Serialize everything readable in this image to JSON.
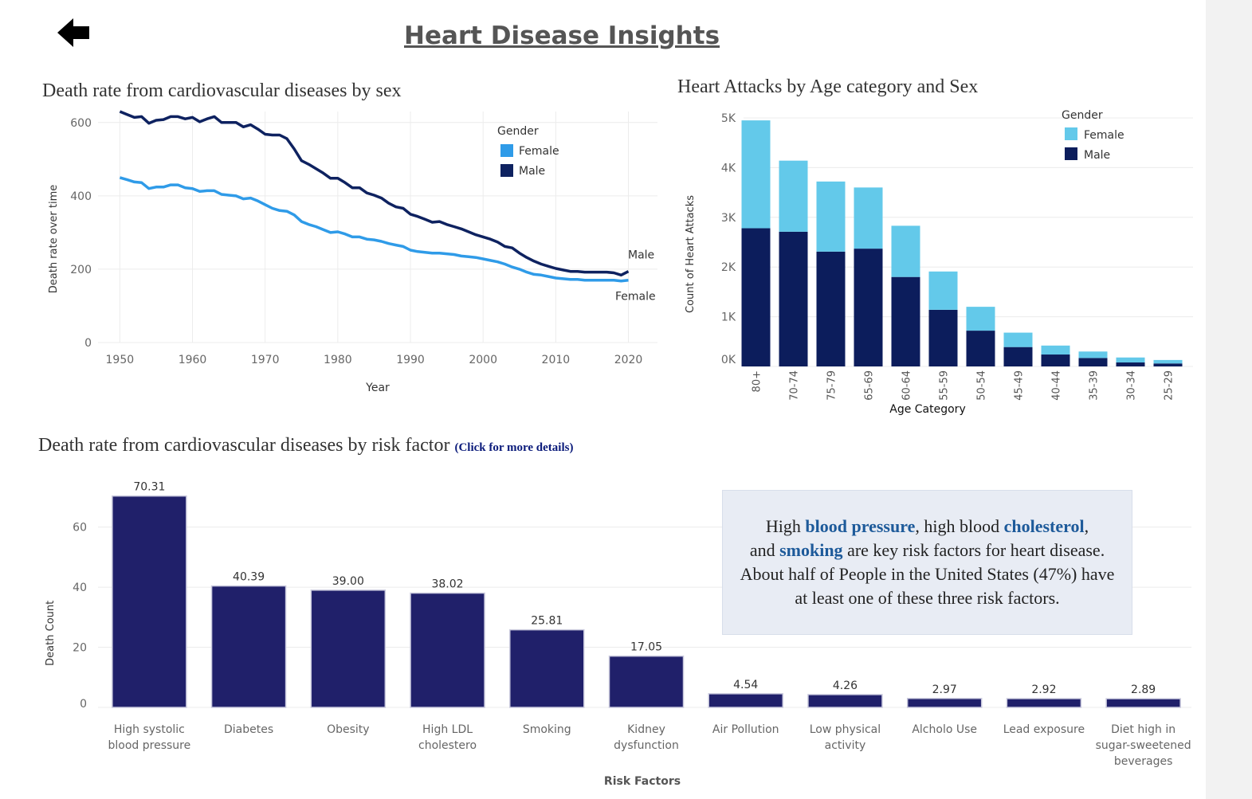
{
  "page": {
    "title": "Heart Disease Insights",
    "back_icon": "back-arrow-icon"
  },
  "line_panel": {
    "title": "Death rate from cardiovascular diseases by sex"
  },
  "age_panel": {
    "title": "Heart Attacks by Age category and Sex"
  },
  "risk_panel": {
    "title": "Death rate from cardiovascular diseases by risk factor",
    "click_hint": "(Click for more details)"
  },
  "info_box": {
    "l1_a": "High ",
    "l1_kw1": "blood pressure",
    "l1_b": ", high blood ",
    "l1_kw2": "cholesterol",
    "l1_c": ",",
    "l2_a": "and ",
    "l2_kw": "smoking",
    "l2_b": " are key risk factors for heart disease.",
    "l3": "About half of People in the United States (47%) have",
    "l4": "at least one of these three risk factors."
  },
  "colors": {
    "female_line": "#2f9be8",
    "male_line": "#0e2260",
    "female_bar": "#63c9ea",
    "male_bar": "#0c1d5c",
    "risk_bar": "#20206a",
    "keyword": "#1d5a9a"
  },
  "chart_data": [
    {
      "type": "line",
      "xlabel": "Year",
      "ylabel": "Death rate over time",
      "xlim": [
        1947,
        2024
      ],
      "ylim": [
        0,
        630
      ],
      "x_ticks": [
        1950,
        1960,
        1970,
        1980,
        1990,
        2000,
        2010,
        2020
      ],
      "y_ticks": [
        0,
        200,
        400,
        600
      ],
      "grid": true,
      "legend": {
        "title": "Gender",
        "position": "top-right",
        "entries": [
          "Female",
          "Male"
        ]
      },
      "end_labels": [
        "Male",
        "Female"
      ],
      "series": [
        {
          "name": "Male",
          "x": [
            1950,
            1951,
            1952,
            1953,
            1954,
            1955,
            1956,
            1957,
            1958,
            1959,
            1960,
            1961,
            1962,
            1963,
            1964,
            1965,
            1966,
            1967,
            1968,
            1969,
            1970,
            1971,
            1972,
            1973,
            1974,
            1975,
            1976,
            1977,
            1978,
            1979,
            1980,
            1981,
            1982,
            1983,
            1984,
            1985,
            1986,
            1987,
            1988,
            1989,
            1990,
            1991,
            1992,
            1993,
            1994,
            1995,
            1996,
            1997,
            1998,
            1999,
            2000,
            2001,
            2002,
            2003,
            2004,
            2005,
            2006,
            2007,
            2008,
            2009,
            2010,
            2011,
            2012,
            2013,
            2014,
            2015,
            2016,
            2017,
            2018,
            2019,
            2020
          ],
          "values": [
            630,
            622,
            614,
            616,
            598,
            606,
            608,
            616,
            616,
            610,
            614,
            602,
            610,
            616,
            600,
            600,
            600,
            588,
            594,
            582,
            568,
            566,
            566,
            556,
            528,
            496,
            486,
            474,
            462,
            448,
            448,
            436,
            422,
            422,
            408,
            402,
            394,
            380,
            370,
            366,
            350,
            344,
            336,
            328,
            330,
            322,
            316,
            310,
            302,
            294,
            288,
            282,
            274,
            262,
            258,
            244,
            232,
            222,
            214,
            208,
            202,
            198,
            194,
            194,
            192,
            192,
            192,
            192,
            190,
            184,
            194
          ]
        },
        {
          "name": "Female",
          "x": [
            1950,
            1951,
            1952,
            1953,
            1954,
            1955,
            1956,
            1957,
            1958,
            1959,
            1960,
            1961,
            1962,
            1963,
            1964,
            1965,
            1966,
            1967,
            1968,
            1969,
            1970,
            1971,
            1972,
            1973,
            1974,
            1975,
            1976,
            1977,
            1978,
            1979,
            1980,
            1981,
            1982,
            1983,
            1984,
            1985,
            1986,
            1987,
            1988,
            1989,
            1990,
            1991,
            1992,
            1993,
            1994,
            1995,
            1996,
            1997,
            1998,
            1999,
            2000,
            2001,
            2002,
            2003,
            2004,
            2005,
            2006,
            2007,
            2008,
            2009,
            2010,
            2011,
            2012,
            2013,
            2014,
            2015,
            2016,
            2017,
            2018,
            2019,
            2020
          ],
          "values": [
            450,
            444,
            438,
            436,
            420,
            424,
            424,
            430,
            430,
            422,
            420,
            412,
            414,
            414,
            404,
            402,
            400,
            392,
            394,
            386,
            376,
            366,
            360,
            358,
            348,
            330,
            322,
            316,
            308,
            300,
            302,
            296,
            288,
            288,
            282,
            280,
            276,
            270,
            266,
            262,
            252,
            248,
            246,
            244,
            244,
            242,
            240,
            236,
            234,
            232,
            228,
            224,
            220,
            214,
            206,
            200,
            192,
            186,
            184,
            180,
            176,
            174,
            172,
            172,
            170,
            170,
            170,
            170,
            170,
            168,
            170
          ]
        }
      ]
    },
    {
      "type": "bar",
      "stacked": true,
      "xlabel": "Age Category",
      "ylabel": "Count of Heart Attacks",
      "ylim": [
        0,
        5000
      ],
      "y_ticks": [
        "0K",
        "1K",
        "2K",
        "3K",
        "4K",
        "5K"
      ],
      "legend": {
        "title": "Gender",
        "position": "top-right",
        "entries": [
          "Female",
          "Male"
        ]
      },
      "categories": [
        "80+",
        "70-74",
        "75-79",
        "65-69",
        "60-64",
        "55-59",
        "50-54",
        "45-49",
        "40-44",
        "35-39",
        "30-34",
        "25-29"
      ],
      "series": [
        {
          "name": "Male",
          "values": [
            2780,
            2710,
            2310,
            2370,
            1800,
            1140,
            720,
            390,
            240,
            170,
            80,
            60
          ]
        },
        {
          "name": "Female",
          "values": [
            2170,
            1430,
            1410,
            1230,
            1030,
            770,
            480,
            290,
            180,
            130,
            100,
            70
          ]
        }
      ]
    },
    {
      "type": "bar",
      "xlabel": "Risk Factors",
      "ylabel": "Death Count",
      "ylim": [
        0,
        75
      ],
      "y_ticks": [
        0,
        20,
        40,
        60
      ],
      "categories": [
        "High systolic\nblood pressure",
        "Diabetes",
        "Obesity",
        "High LDL\ncholestero",
        "Smoking",
        "Kidney\ndysfunction",
        "Air Pollution",
        "Low physical\nactivity",
        "Alcholo Use",
        "Lead exposure",
        "Diet high in\nsugar-sweetened\nbeverages"
      ],
      "values": [
        70.31,
        40.39,
        39.0,
        38.02,
        25.81,
        17.05,
        4.54,
        4.26,
        2.97,
        2.92,
        2.89
      ],
      "data_labels": [
        "70.31",
        "40.39",
        "39.00",
        "38.02",
        "25.81",
        "17.05",
        "4.54",
        "4.26",
        "2.97",
        "2.92",
        "2.89"
      ]
    }
  ]
}
